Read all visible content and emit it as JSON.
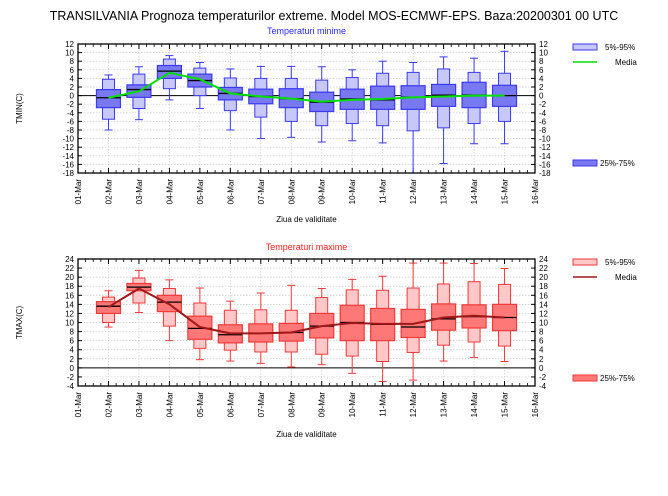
{
  "main_title": "TRANSILVANIA  Prognoza temperaturilor extreme.  Model MOS-ECMWF-EPS. Baza:20200301 00 UTC",
  "chart_data": [
    {
      "type": "box",
      "title": "Temperaturi minime",
      "title_color": "#2b2bff",
      "xlabel": "Ziua de validitate",
      "ylabel": "TMIN(C)",
      "ylim": [
        -18,
        12
      ],
      "yticks": [
        12,
        10,
        8,
        6,
        4,
        2,
        0,
        -2,
        -4,
        -6,
        -8,
        -10,
        -12,
        -14,
        -16,
        -18
      ],
      "categories": [
        "01-Mar",
        "02-Mar",
        "03-Mar",
        "04-Mar",
        "05-Mar",
        "06-Mar",
        "07-Mar",
        "08-Mar",
        "09-Mar",
        "10-Mar",
        "11-Mar",
        "12-Mar",
        "13-Mar",
        "14-Mar",
        "15-Mar",
        "16-Mar"
      ],
      "grid": true,
      "colors": {
        "light": "#c8c8f8",
        "dark": "#7878f0",
        "edge": "#3a3af0",
        "median": "#000000",
        "mean": "#00e000"
      },
      "legend": [
        {
          "label": "5%-95%",
          "kind": "light-box"
        },
        {
          "label": "Media",
          "kind": "mean-line"
        },
        {
          "label": "25%-75%",
          "kind": "dark-box"
        }
      ],
      "legend_position": "right",
      "series": [
        {
          "day": "02-Mar",
          "min": -8,
          "p5": -5.5,
          "p25": -2.8,
          "median": -0.5,
          "p75": 1.4,
          "p95": 3.8,
          "max": 4.8,
          "mean": -0.5
        },
        {
          "day": "03-Mar",
          "min": -5.6,
          "p5": -3,
          "p25": -0.4,
          "median": 1.4,
          "p75": 2.5,
          "p95": 5.0,
          "max": 6.7,
          "mean": 1.0
        },
        {
          "day": "04-Mar",
          "min": -1.0,
          "p5": 1.6,
          "p25": 4.0,
          "median": 5.7,
          "p75": 7.0,
          "p95": 8.5,
          "max": 9.3,
          "mean": 5.3
        },
        {
          "day": "05-Mar",
          "min": -3.0,
          "p5": 0.0,
          "p25": 2.0,
          "median": 3.5,
          "p75": 5.0,
          "p95": 6.4,
          "max": 7.7,
          "mean": 3.8
        },
        {
          "day": "06-Mar",
          "min": -8.0,
          "p5": -3.5,
          "p25": -1.0,
          "median": 0.5,
          "p75": 1.9,
          "p95": 4.1,
          "max": 6.2,
          "mean": 0.5
        },
        {
          "day": "07-Mar",
          "min": -10.0,
          "p5": -5.0,
          "p25": -1.9,
          "median": -0.2,
          "p75": 1.5,
          "p95": 4.0,
          "max": 6.8,
          "mean": -0.2
        },
        {
          "day": "08-Mar",
          "min": -9.7,
          "p5": -6.0,
          "p25": -2.8,
          "median": -0.7,
          "p75": 1.6,
          "p95": 4.0,
          "max": 6.8,
          "mean": -0.7
        },
        {
          "day": "09-Mar",
          "min": -10.8,
          "p5": -7.0,
          "p25": -3.7,
          "median": -1.5,
          "p75": 0.8,
          "p95": 3.6,
          "max": 6.7,
          "mean": -1.4
        },
        {
          "day": "10-Mar",
          "min": -10.5,
          "p5": -6.5,
          "p25": -3.2,
          "median": -0.8,
          "p75": 1.5,
          "p95": 4.2,
          "max": 6.0,
          "mean": -1.0
        },
        {
          "day": "11-Mar",
          "min": -11.0,
          "p5": -7.0,
          "p25": -3.2,
          "median": -1.0,
          "p75": 2.2,
          "p95": 5.2,
          "max": 8.0,
          "mean": -0.8
        },
        {
          "day": "12-Mar",
          "min": -18.0,
          "p5": -8.2,
          "p25": -3.2,
          "median": -0.4,
          "p75": 2.3,
          "p95": 5.4,
          "max": 7.7,
          "mean": -0.4
        },
        {
          "day": "13-Mar",
          "min": -15.8,
          "p5": -7.5,
          "p25": -2.5,
          "median": 0.1,
          "p75": 2.6,
          "p95": 6.2,
          "max": 9.0,
          "mean": -0.2
        },
        {
          "day": "14-Mar",
          "min": -11.2,
          "p5": -6.5,
          "p25": -2.8,
          "median": 0.1,
          "p75": 3.1,
          "p95": 5.4,
          "max": 8.7,
          "mean": 0.0
        },
        {
          "day": "15-Mar",
          "min": -11.2,
          "p5": -6.0,
          "p25": -2.5,
          "median": 0.0,
          "p75": 2.4,
          "p95": 5.2,
          "max": 10.3,
          "mean": 0.0
        }
      ]
    },
    {
      "type": "box",
      "title": "Temperaturi maxime",
      "title_color": "#ff2020",
      "xlabel": "Ziua de validitate",
      "ylabel": "TMAX(C)",
      "ylim": [
        -4,
        24
      ],
      "yticks": [
        24,
        22,
        20,
        18,
        16,
        14,
        12,
        10,
        8,
        6,
        4,
        2,
        0,
        -2,
        -4
      ],
      "categories": [
        "01-Mar",
        "02-Mar",
        "03-Mar",
        "04-Mar",
        "05-Mar",
        "06-Mar",
        "07-Mar",
        "08-Mar",
        "09-Mar",
        "10-Mar",
        "11-Mar",
        "12-Mar",
        "13-Mar",
        "14-Mar",
        "15-Mar",
        "16-Mar"
      ],
      "grid": true,
      "colors": {
        "light": "#ffc8c8",
        "dark": "#ff7878",
        "edge": "#f03a3a",
        "median": "#000000",
        "mean": "#a01818"
      },
      "legend": [
        {
          "label": "5%-95%",
          "kind": "light-box"
        },
        {
          "label": "Media",
          "kind": "mean-line"
        },
        {
          "label": "25%-75%",
          "kind": "dark-box"
        }
      ],
      "legend_position": "right",
      "series": [
        {
          "day": "02-Mar",
          "min": 9.0,
          "p5": 10.0,
          "p25": 12.0,
          "median": 13.6,
          "p75": 14.6,
          "p95": 15.6,
          "max": 17.0,
          "mean": 13.4
        },
        {
          "day": "03-Mar",
          "min": 12.2,
          "p5": 14.3,
          "p25": 17.0,
          "median": 17.8,
          "p75": 18.6,
          "p95": 19.8,
          "max": 21.5,
          "mean": 17.5
        },
        {
          "day": "04-Mar",
          "min": 6.0,
          "p5": 9.2,
          "p25": 12.4,
          "median": 14.5,
          "p75": 16.0,
          "p95": 17.5,
          "max": 19.4,
          "mean": 14.0
        },
        {
          "day": "05-Mar",
          "min": 1.8,
          "p5": 4.3,
          "p25": 6.3,
          "median": 8.7,
          "p75": 11.4,
          "p95": 14.3,
          "max": 17.6,
          "mean": 9.0
        },
        {
          "day": "06-Mar",
          "min": 1.5,
          "p5": 3.9,
          "p25": 5.5,
          "median": 7.3,
          "p75": 9.5,
          "p95": 12.7,
          "max": 14.7,
          "mean": 7.6
        },
        {
          "day": "07-Mar",
          "min": 1.0,
          "p5": 3.5,
          "p25": 5.7,
          "median": 7.6,
          "p75": 9.7,
          "p95": 12.8,
          "max": 16.5,
          "mean": 7.6
        },
        {
          "day": "08-Mar",
          "min": 0.2,
          "p5": 3.5,
          "p25": 5.9,
          "median": 7.8,
          "p75": 9.8,
          "p95": 12.7,
          "max": 18.2,
          "mean": 7.8
        },
        {
          "day": "09-Mar",
          "min": 0.7,
          "p5": 3.0,
          "p25": 6.6,
          "median": 9.2,
          "p75": 12.0,
          "p95": 15.5,
          "max": 17.5,
          "mean": 9.2
        },
        {
          "day": "10-Mar",
          "min": -1.2,
          "p5": 2.6,
          "p25": 6.0,
          "median": 10.0,
          "p75": 13.8,
          "p95": 17.2,
          "max": 19.5,
          "mean": 9.9
        },
        {
          "day": "11-Mar",
          "min": -3.0,
          "p5": 1.4,
          "p25": 6.0,
          "median": 9.6,
          "p75": 13.1,
          "p95": 17.1,
          "max": 20.2,
          "mean": 9.7
        },
        {
          "day": "12-Mar",
          "min": -2.7,
          "p5": 3.4,
          "p25": 6.7,
          "median": 9.0,
          "p75": 12.9,
          "p95": 17.6,
          "max": 23.1,
          "mean": 9.7
        },
        {
          "day": "13-Mar",
          "min": 1.5,
          "p5": 5.0,
          "p25": 8.3,
          "median": 10.8,
          "p75": 14.1,
          "p95": 18.5,
          "max": 23.1,
          "mean": 11.1
        },
        {
          "day": "14-Mar",
          "min": 2.3,
          "p5": 5.7,
          "p25": 8.8,
          "median": 11.3,
          "p75": 13.9,
          "p95": 19.0,
          "max": 23.0,
          "mean": 11.5
        },
        {
          "day": "15-Mar",
          "min": 1.4,
          "p5": 4.8,
          "p25": 8.2,
          "median": 11.1,
          "p75": 14.0,
          "p95": 18.4,
          "max": 21.9,
          "mean": 11.1
        }
      ]
    }
  ]
}
